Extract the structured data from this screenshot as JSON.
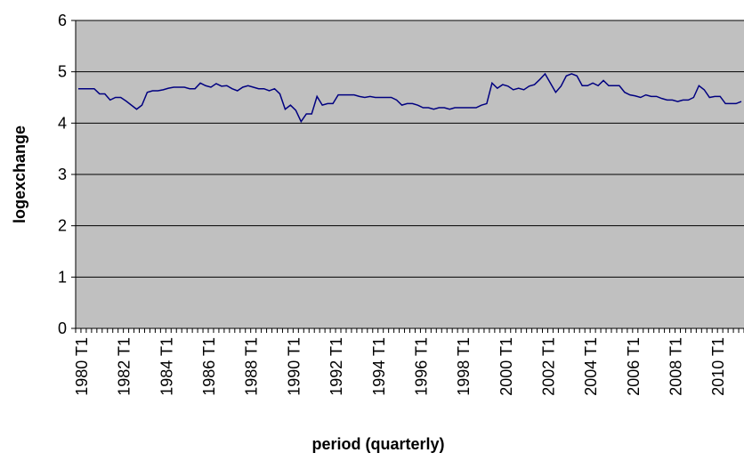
{
  "chart_data": {
    "type": "line",
    "y_label": "logexchange",
    "x_label": "period (quarterly)",
    "categories": [
      "1980 T1",
      null,
      null,
      null,
      null,
      null,
      null,
      null,
      "1982 T1",
      null,
      null,
      null,
      null,
      null,
      null,
      null,
      "1984 T1",
      null,
      null,
      null,
      null,
      null,
      null,
      null,
      "1986 T1",
      null,
      null,
      null,
      null,
      null,
      null,
      null,
      "1988 T1",
      null,
      null,
      null,
      null,
      null,
      null,
      null,
      "1990 T1",
      null,
      null,
      null,
      null,
      null,
      null,
      null,
      "1992 T1",
      null,
      null,
      null,
      null,
      null,
      null,
      null,
      "1994 T1",
      null,
      null,
      null,
      null,
      null,
      null,
      null,
      "1996 T1",
      null,
      null,
      null,
      null,
      null,
      null,
      null,
      "1998 T1",
      null,
      null,
      null,
      null,
      null,
      null,
      null,
      "2000 T1",
      null,
      null,
      null,
      null,
      null,
      null,
      null,
      "2002 T1",
      null,
      null,
      null,
      null,
      null,
      null,
      null,
      "2004 T1",
      null,
      null,
      null,
      null,
      null,
      null,
      null,
      "2006 T1",
      null,
      null,
      null,
      null,
      null,
      null,
      null,
      "2008 T1",
      null,
      null,
      null,
      null,
      null,
      null,
      null,
      "2010 T1",
      null,
      null,
      null,
      null,
      null
    ],
    "series": [
      {
        "color": "#000080",
        "values": [
          4.67,
          4.67,
          4.67,
          4.67,
          4.57,
          4.57,
          4.45,
          4.5,
          4.5,
          4.43,
          4.35,
          4.27,
          4.35,
          4.6,
          4.63,
          4.63,
          4.65,
          4.68,
          4.7,
          4.7,
          4.7,
          4.67,
          4.67,
          4.78,
          4.73,
          4.7,
          4.77,
          4.72,
          4.73,
          4.67,
          4.63,
          4.7,
          4.73,
          4.7,
          4.67,
          4.67,
          4.63,
          4.67,
          4.57,
          4.27,
          4.35,
          4.25,
          4.03,
          4.18,
          4.18,
          4.52,
          4.35,
          4.38,
          4.38,
          4.55,
          4.55,
          4.55,
          4.55,
          4.52,
          4.5,
          4.52,
          4.5,
          4.5,
          4.5,
          4.5,
          4.45,
          4.35,
          4.38,
          4.38,
          4.35,
          4.3,
          4.3,
          4.27,
          4.3,
          4.3,
          4.27,
          4.3,
          4.3,
          4.3,
          4.3,
          4.3,
          4.35,
          4.38,
          4.78,
          4.68,
          4.75,
          4.72,
          4.65,
          4.68,
          4.65,
          4.72,
          4.75,
          4.85,
          4.96,
          4.78,
          4.6,
          4.72,
          4.92,
          4.96,
          4.92,
          4.73,
          4.73,
          4.78,
          4.73,
          4.83,
          4.73,
          4.73,
          4.73,
          4.6,
          4.55,
          4.53,
          4.5,
          4.55,
          4.52,
          4.52,
          4.48,
          4.45,
          4.45,
          4.42,
          4.45,
          4.45,
          4.5,
          4.73,
          4.65,
          4.5,
          4.52,
          4.52,
          4.38,
          4.38,
          4.38,
          4.42
        ]
      }
    ],
    "ylim": [
      0,
      6
    ],
    "yticks": [
      0,
      1,
      2,
      3,
      4,
      5,
      6
    ],
    "grid": true,
    "plot_background": "#c0c0c0"
  }
}
